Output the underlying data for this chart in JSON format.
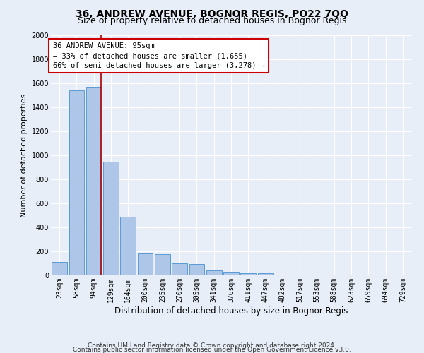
{
  "title": "36, ANDREW AVENUE, BOGNOR REGIS, PO22 7QQ",
  "subtitle": "Size of property relative to detached houses in Bognor Regis",
  "xlabel": "Distribution of detached houses by size in Bognor Regis",
  "ylabel": "Number of detached properties",
  "bar_labels": [
    "23sqm",
    "58sqm",
    "94sqm",
    "129sqm",
    "164sqm",
    "200sqm",
    "235sqm",
    "270sqm",
    "305sqm",
    "341sqm",
    "376sqm",
    "411sqm",
    "447sqm",
    "482sqm",
    "517sqm",
    "553sqm",
    "588sqm",
    "623sqm",
    "659sqm",
    "694sqm",
    "729sqm"
  ],
  "bar_values": [
    110,
    1540,
    1570,
    950,
    490,
    180,
    175,
    100,
    95,
    40,
    30,
    20,
    15,
    5,
    3,
    0,
    0,
    0,
    0,
    0,
    0
  ],
  "bar_color": "#aec6e8",
  "bar_edge_color": "#5b9bd5",
  "background_color": "#e8eef8",
  "grid_color": "#ffffff",
  "vline_color": "#aa0000",
  "vline_x_index": 2.43,
  "annotation_text": "36 ANDREW AVENUE: 95sqm\n← 33% of detached houses are smaller (1,655)\n66% of semi-detached houses are larger (3,278) →",
  "annotation_box_facecolor": "#ffffff",
  "annotation_box_edgecolor": "#cc0000",
  "ylim": [
    0,
    2000
  ],
  "yticks": [
    0,
    200,
    400,
    600,
    800,
    1000,
    1200,
    1400,
    1600,
    1800,
    2000
  ],
  "footer_line1": "Contains HM Land Registry data © Crown copyright and database right 2024.",
  "footer_line2": "Contains public sector information licensed under the Open Government Licence v3.0.",
  "title_fontsize": 10,
  "subtitle_fontsize": 9,
  "xlabel_fontsize": 8.5,
  "ylabel_fontsize": 8,
  "tick_fontsize": 7,
  "annotation_fontsize": 7.5,
  "footer_fontsize": 6.5
}
